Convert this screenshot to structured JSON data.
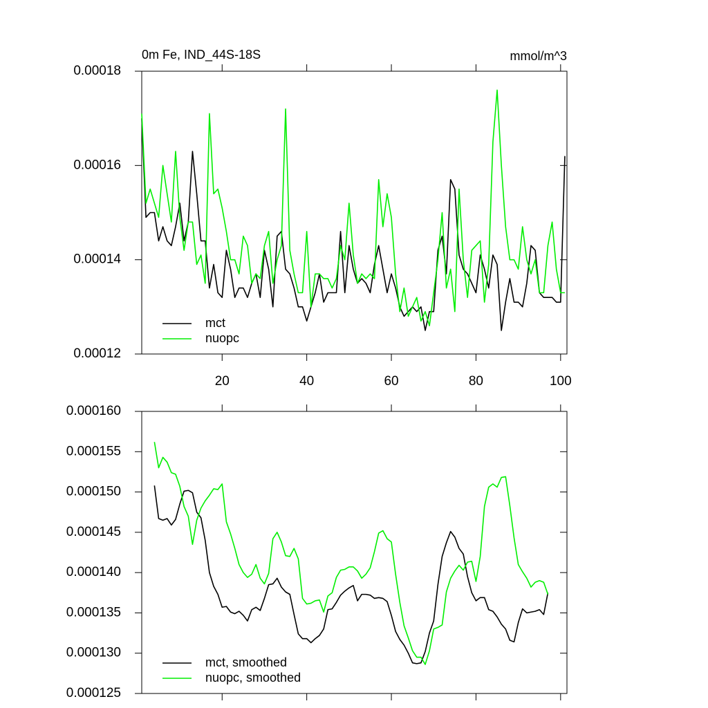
{
  "chart_data": [
    {
      "type": "line",
      "title": "0m Fe, IND_44S-18S",
      "subtitle": "mmol/m^3",
      "x": [
        1,
        2,
        3,
        4,
        5,
        6,
        7,
        8,
        9,
        10,
        11,
        12,
        13,
        14,
        15,
        16,
        17,
        18,
        19,
        20,
        21,
        22,
        23,
        24,
        25,
        26,
        27,
        28,
        29,
        30,
        31,
        32,
        33,
        34,
        35,
        36,
        37,
        38,
        39,
        40,
        41,
        42,
        43,
        44,
        45,
        46,
        47,
        48,
        49,
        50,
        51,
        52,
        53,
        54,
        55,
        56,
        57,
        58,
        59,
        60,
        61,
        62,
        63,
        64,
        65,
        66,
        67,
        68,
        69,
        70,
        71,
        72,
        73,
        74,
        75,
        76,
        77,
        78,
        79,
        80,
        81,
        82,
        83,
        84,
        85,
        86,
        87,
        88,
        89,
        90,
        91,
        92,
        93,
        94,
        95,
        96,
        97,
        98,
        99,
        100,
        101
      ],
      "series": [
        {
          "name": "mct",
          "color": "#000000",
          "values": [
            0.00017,
            0.000149,
            0.00015,
            0.00015,
            0.000144,
            0.000147,
            0.000144,
            0.000143,
            0.000147,
            0.000152,
            0.000144,
            0.000148,
            0.000163,
            0.000154,
            0.000144,
            0.000144,
            0.000134,
            0.000139,
            0.000133,
            0.000132,
            0.000142,
            0.000138,
            0.000132,
            0.000134,
            0.000134,
            0.000132,
            0.000135,
            0.000137,
            0.000132,
            0.000142,
            0.000138,
            0.00013,
            0.000145,
            0.000146,
            0.000138,
            0.000137,
            0.000134,
            0.00013,
            0.00013,
            0.000127,
            0.00013,
            0.000133,
            0.000137,
            0.000131,
            0.000133,
            0.000133,
            0.000133,
            0.000146,
            0.000133,
            0.000143,
            0.000138,
            0.000135,
            0.000136,
            0.000135,
            0.000133,
            0.000139,
            0.000143,
            0.000138,
            0.000133,
            0.000137,
            0.000134,
            0.00013,
            0.000128,
            0.000129,
            0.00013,
            0.000129,
            0.00013,
            0.000125,
            0.000129,
            0.000129,
            0.000142,
            0.000145,
            0.000137,
            0.000157,
            0.000155,
            0.000141,
            0.000138,
            0.000137,
            0.000135,
            0.000133,
            0.000141,
            0.000138,
            0.000134,
            0.000141,
            0.000139,
            0.000125,
            0.000131,
            0.000136,
            0.000131,
            0.000131,
            0.00013,
            0.000135,
            0.000143,
            0.000142,
            0.000133,
            0.000132,
            0.000132,
            0.000132,
            0.000131,
            0.000131,
            0.000162
          ]
        },
        {
          "name": "nuopc",
          "color": "#00ee00",
          "values": [
            0.000171,
            0.000152,
            0.000155,
            0.000152,
            0.000149,
            0.00016,
            0.000154,
            0.000148,
            0.000163,
            0.000149,
            0.000142,
            0.000148,
            0.000148,
            0.000139,
            0.000141,
            0.000135,
            0.000171,
            0.000154,
            0.000155,
            0.000151,
            0.000146,
            0.00014,
            0.00014,
            0.000137,
            0.000145,
            0.000143,
            0.000135,
            0.000137,
            0.000136,
            0.000143,
            0.000146,
            0.000135,
            0.00014,
            0.000143,
            0.000172,
            0.000142,
            0.000137,
            0.000133,
            0.000133,
            0.000146,
            0.00013,
            0.000137,
            0.000137,
            0.000136,
            0.000136,
            0.000134,
            0.000136,
            0.000143,
            0.00014,
            0.000152,
            0.000141,
            0.000135,
            0.000137,
            0.000136,
            0.000137,
            0.000136,
            0.000157,
            0.000147,
            0.000154,
            0.000149,
            0.000137,
            0.000129,
            0.000134,
            0.000128,
            0.00013,
            0.000132,
            0.000127,
            0.000129,
            0.000126,
            0.000133,
            0.00014,
            0.00015,
            0.000134,
            0.000138,
            0.000129,
            0.000155,
            0.00014,
            0.000132,
            0.000142,
            0.000143,
            0.000144,
            0.000131,
            0.000139,
            0.000165,
            0.000176,
            0.00016,
            0.000147,
            0.00014,
            0.00014,
            0.000138,
            0.000147,
            0.00014,
            0.000137,
            0.00014,
            0.000133,
            0.000133,
            0.000143,
            0.000148,
            0.000138,
            0.000133,
            0.000133
          ]
        }
      ],
      "xlim": [
        1,
        101.5
      ],
      "xticks": [
        20,
        40,
        60,
        80,
        100
      ],
      "ylim": [
        0.00012,
        0.00018
      ],
      "yticks": [
        0.00012,
        0.00014,
        0.00016,
        0.00018
      ],
      "legend": "lower left"
    },
    {
      "type": "line",
      "x": [
        4,
        5,
        6,
        7,
        8,
        9,
        10,
        11,
        12,
        13,
        14,
        15,
        16,
        17,
        18,
        19,
        20,
        21,
        22,
        23,
        24,
        25,
        26,
        27,
        28,
        29,
        30,
        31,
        32,
        33,
        34,
        35,
        36,
        37,
        38,
        39,
        40,
        41,
        42,
        43,
        44,
        45,
        46,
        47,
        48,
        49,
        50,
        51,
        52,
        53,
        54,
        55,
        56,
        57,
        58,
        59,
        60,
        61,
        62,
        63,
        64,
        65,
        66,
        67,
        68,
        69,
        70,
        71,
        72,
        73,
        74,
        75,
        76,
        77,
        78,
        79,
        80,
        81,
        82,
        83,
        84,
        85,
        86,
        87,
        88,
        89,
        90,
        91,
        92,
        93,
        94,
        95,
        96,
        97
      ],
      "series": [
        {
          "name": "mct, smoothed",
          "color": "#000000",
          "values": [
            0.0001508,
            0.0001467,
            0.0001465,
            0.0001467,
            0.0001459,
            0.0001466,
            0.0001485,
            0.0001501,
            0.0001502,
            0.0001499,
            0.0001475,
            0.0001468,
            0.000144,
            0.00014,
            0.0001383,
            0.0001373,
            0.0001357,
            0.0001358,
            0.0001351,
            0.0001349,
            0.0001352,
            0.0001347,
            0.000134,
            0.0001354,
            0.0001357,
            0.0001353,
            0.0001368,
            0.0001385,
            0.0001386,
            0.0001393,
            0.0001382,
            0.0001376,
            0.0001373,
            0.0001348,
            0.0001324,
            0.0001318,
            0.0001318,
            0.0001313,
            0.0001318,
            0.0001322,
            0.000133,
            0.0001354,
            0.0001355,
            0.0001363,
            0.0001372,
            0.0001377,
            0.0001381,
            0.0001384,
            0.0001365,
            0.0001373,
            0.0001373,
            0.0001372,
            0.0001368,
            0.0001369,
            0.0001368,
            0.0001364,
            0.0001347,
            0.0001327,
            0.0001317,
            0.000131,
            0.00013,
            0.0001288,
            0.0001287,
            0.0001288,
            0.0001302,
            0.0001325,
            0.000134,
            0.0001385,
            0.000142,
            0.0001437,
            0.0001451,
            0.0001444,
            0.000143,
            0.0001423,
            0.0001395,
            0.0001375,
            0.0001365,
            0.0001369,
            0.0001369,
            0.0001354,
            0.0001352,
            0.0001345,
            0.0001336,
            0.000133,
            0.0001316,
            0.0001314,
            0.0001338,
            0.0001355,
            0.000135,
            0.0001351,
            0.0001352,
            0.0001354,
            0.0001348,
            0.0001375
          ]
        },
        {
          "name": "nuopc, smoothed",
          "color": "#00ee00",
          "values": [
            0.0001562,
            0.000153,
            0.0001543,
            0.0001537,
            0.0001524,
            0.0001522,
            0.0001507,
            0.0001482,
            0.000147,
            0.0001435,
            0.0001465,
            0.000148,
            0.0001489,
            0.0001496,
            0.0001504,
            0.0001503,
            0.000151,
            0.0001463,
            0.0001448,
            0.000143,
            0.000141,
            0.00014,
            0.0001394,
            0.0001398,
            0.000141,
            0.0001393,
            0.0001386,
            0.0001399,
            0.0001442,
            0.000145,
            0.0001438,
            0.0001421,
            0.000142,
            0.000143,
            0.0001417,
            0.0001368,
            0.0001361,
            0.0001362,
            0.0001365,
            0.0001366,
            0.0001351,
            0.0001371,
            0.0001375,
            0.0001394,
            0.0001403,
            0.0001404,
            0.0001407,
            0.0001407,
            0.0001402,
            0.0001393,
            0.0001398,
            0.0001406,
            0.0001426,
            0.0001449,
            0.0001452,
            0.0001442,
            0.0001438,
            0.0001398,
            0.0001363,
            0.0001334,
            0.0001319,
            0.0001303,
            0.0001295,
            0.0001295,
            0.0001286,
            0.0001303,
            0.000133,
            0.0001332,
            0.0001335,
            0.0001376,
            0.0001393,
            0.0001402,
            0.0001409,
            0.0001403,
            0.0001413,
            0.0001414,
            0.0001389,
            0.000142,
            0.0001482,
            0.0001506,
            0.000151,
            0.0001506,
            0.0001518,
            0.0001519,
            0.0001483,
            0.0001443,
            0.000141,
            0.0001401,
            0.0001393,
            0.0001382,
            0.0001388,
            0.000139,
            0.0001388,
            0.0001373
          ]
        }
      ],
      "xlim": [
        1,
        101.5
      ],
      "ylim": [
        0.000125,
        0.00016
      ],
      "yticks": [
        {
          "value": 0.000125,
          "label": "0.000125"
        },
        {
          "value": 0.00013,
          "label": "0.000130"
        },
        {
          "value": 0.000135,
          "label": "0.000135"
        },
        {
          "value": 0.00014,
          "label": "0.000140"
        },
        {
          "value": 0.000145,
          "label": "0.000145"
        },
        {
          "value": 0.00015,
          "label": "0.000150"
        },
        {
          "value": 0.000155,
          "label": "0.000155"
        },
        {
          "value": 0.00016,
          "label": "0.000160"
        }
      ],
      "legend": "lower left"
    }
  ]
}
